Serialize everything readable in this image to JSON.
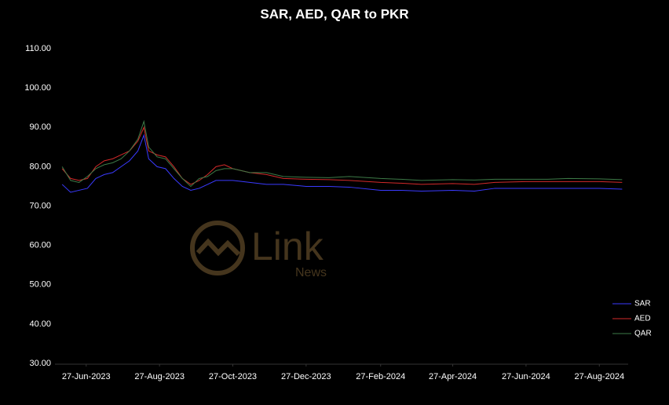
{
  "chart_data": {
    "type": "line",
    "title": "SAR, AED, QAR to PKR",
    "x": [
      "2023-06-07",
      "2023-06-14",
      "2023-06-21",
      "2023-06-28",
      "2023-07-05",
      "2023-07-12",
      "2023-07-19",
      "2023-07-26",
      "2023-08-02",
      "2023-08-09",
      "2023-08-14",
      "2023-08-18",
      "2023-08-25",
      "2023-09-01",
      "2023-09-08",
      "2023-09-15",
      "2023-09-22",
      "2023-09-29",
      "2023-10-06",
      "2023-10-13",
      "2023-10-20",
      "2023-10-27",
      "2023-11-10",
      "2023-11-24",
      "2023-12-08",
      "2023-12-27",
      "2024-01-15",
      "2024-02-01",
      "2024-02-27",
      "2024-03-15",
      "2024-04-01",
      "2024-04-27",
      "2024-05-15",
      "2024-06-01",
      "2024-06-27",
      "2024-07-15",
      "2024-08-01",
      "2024-08-27",
      "2024-09-15"
    ],
    "series": [
      {
        "name": "SAR",
        "color": "#3a3aff",
        "values": [
          75.5,
          73.5,
          74,
          74.5,
          77,
          78,
          78.5,
          80,
          81.5,
          84,
          88,
          82,
          80,
          79.5,
          77,
          75,
          74,
          74.5,
          75.5,
          76.5,
          76.5,
          76.5,
          76,
          75.5,
          75.5,
          75,
          75,
          74.8,
          74,
          74,
          73.8,
          74,
          73.8,
          74.5,
          74.5,
          74.5,
          74.5,
          74.5,
          74.3
        ]
      },
      {
        "name": "AED",
        "color": "#d42a2a",
        "values": [
          79.5,
          77,
          76.5,
          77,
          80,
          81.5,
          82,
          83,
          84,
          86.5,
          90,
          84,
          83,
          82.5,
          80,
          77,
          75.5,
          76.5,
          78,
          80,
          80.5,
          79.5,
          78.5,
          78,
          77,
          76.8,
          76.7,
          76.5,
          76,
          75.8,
          75.5,
          75.7,
          75.5,
          76,
          76.2,
          76.2,
          76.2,
          76.2,
          76
        ]
      },
      {
        "name": "QAR",
        "color": "#3d7a47",
        "values": [
          80,
          76.5,
          76,
          77.5,
          79.5,
          80.5,
          81,
          82,
          84,
          87,
          91.5,
          85,
          82.5,
          82,
          79.5,
          77,
          75,
          77,
          77.5,
          79,
          79.5,
          79.5,
          78.5,
          78.5,
          77.5,
          77.3,
          77.2,
          77.5,
          77,
          76.8,
          76.5,
          76.7,
          76.6,
          76.8,
          76.8,
          76.8,
          77,
          76.9,
          76.7
        ]
      }
    ],
    "xlim": [
      "2023-06-01",
      "2024-09-20"
    ],
    "xticks": [
      {
        "value": "2023-06-27",
        "label": "27-Jun-2023"
      },
      {
        "value": "2023-08-27",
        "label": "27-Aug-2023"
      },
      {
        "value": "2023-10-27",
        "label": "27-Oct-2023"
      },
      {
        "value": "2023-12-27",
        "label": "27-Dec-2023"
      },
      {
        "value": "2024-02-27",
        "label": "27-Feb-2024"
      },
      {
        "value": "2024-04-27",
        "label": "27-Apr-2024"
      },
      {
        "value": "2024-06-27",
        "label": "27-Jun-2024"
      },
      {
        "value": "2024-08-27",
        "label": "27-Aug-2024"
      }
    ],
    "ylim": [
      30,
      110
    ],
    "yticks": [
      {
        "value": 30,
        "label": "30.00"
      },
      {
        "value": 40,
        "label": "40.00"
      },
      {
        "value": 50,
        "label": "50.00"
      },
      {
        "value": 60,
        "label": "60.00"
      },
      {
        "value": 70,
        "label": "70.00"
      },
      {
        "value": 80,
        "label": "80.00"
      },
      {
        "value": 90,
        "label": "90.00"
      },
      {
        "value": 100,
        "label": "100.00"
      },
      {
        "value": 110,
        "label": "110.00"
      }
    ],
    "grid": false,
    "legend": "bottom-right",
    "watermark": {
      "text": "Link",
      "subtext": "News"
    }
  }
}
